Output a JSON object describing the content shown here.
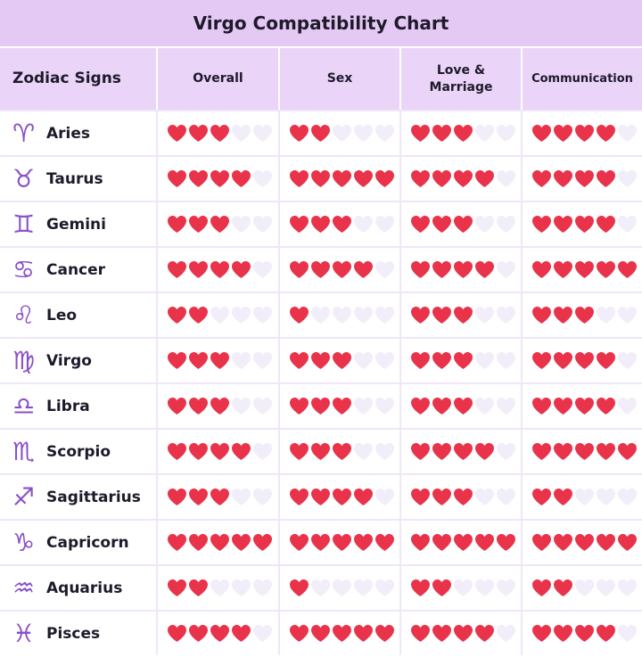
{
  "title": "Virgo Compatibility Chart",
  "columns": [
    "Zodiac Signs",
    "Overall",
    "Sex",
    "Love & Marriage",
    "Communication"
  ],
  "scale_max": 5,
  "rows": [
    {
      "icon": "♈",
      "sign": "Aries",
      "ratings": [
        3,
        2,
        3,
        4
      ]
    },
    {
      "icon": "♉",
      "sign": "Taurus",
      "ratings": [
        4,
        5,
        4,
        4
      ]
    },
    {
      "icon": "♊",
      "sign": "Gemini",
      "ratings": [
        3,
        3,
        3,
        4
      ]
    },
    {
      "icon": "♋",
      "sign": "Cancer",
      "ratings": [
        4,
        4,
        4,
        5
      ]
    },
    {
      "icon": "♌",
      "sign": "Leo",
      "ratings": [
        2,
        1,
        3,
        3
      ]
    },
    {
      "icon": "♍",
      "sign": "Virgo",
      "ratings": [
        3,
        3,
        3,
        4
      ]
    },
    {
      "icon": "♎",
      "sign": "Libra",
      "ratings": [
        3,
        3,
        3,
        4
      ]
    },
    {
      "icon": "♏",
      "sign": "Scorpio",
      "ratings": [
        4,
        3,
        4,
        5
      ]
    },
    {
      "icon": "♐",
      "sign": "Sagittarius",
      "ratings": [
        3,
        4,
        3,
        2
      ]
    },
    {
      "icon": "♑",
      "sign": "Capricorn",
      "ratings": [
        5,
        5,
        5,
        5
      ]
    },
    {
      "icon": "♒",
      "sign": "Aquarius",
      "ratings": [
        2,
        1,
        2,
        2
      ]
    },
    {
      "icon": "♓",
      "sign": "Pisces",
      "ratings": [
        4,
        5,
        4,
        4
      ]
    }
  ]
}
